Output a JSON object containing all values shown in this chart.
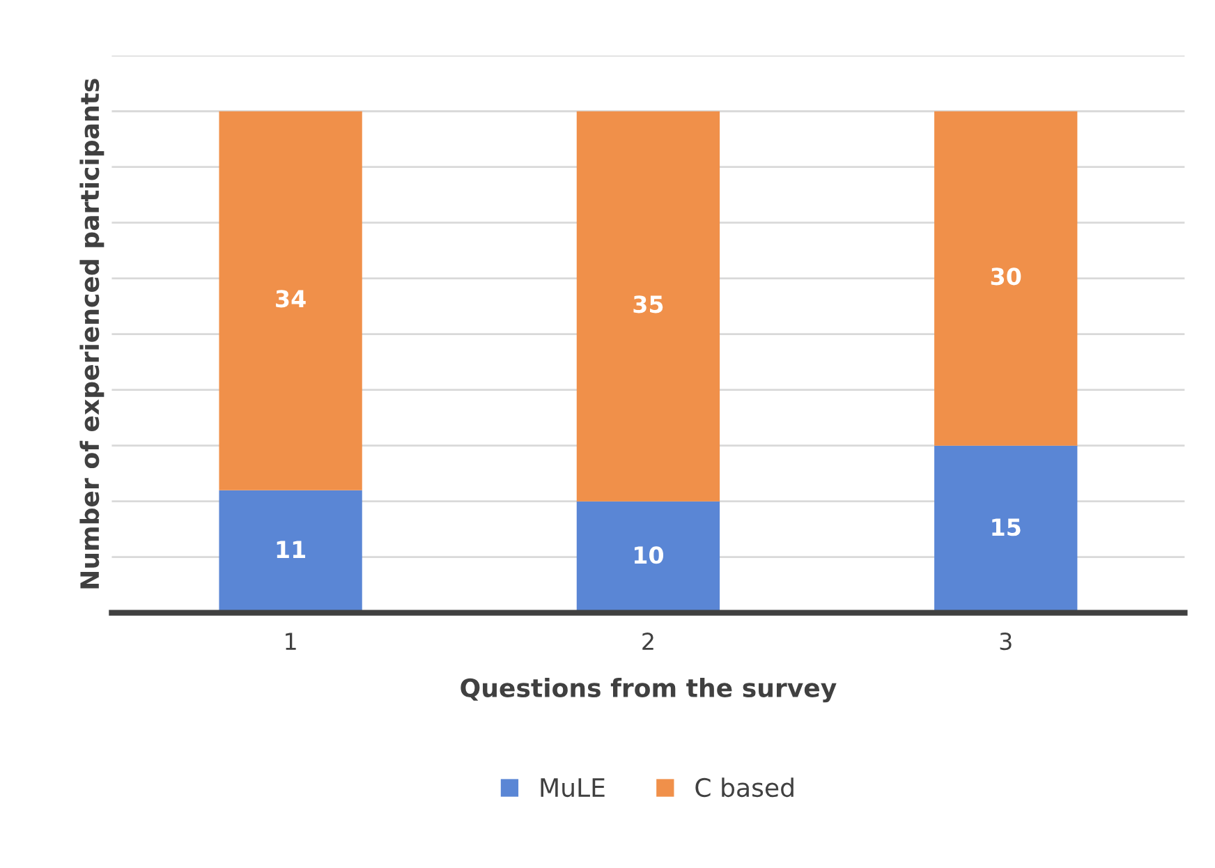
{
  "chart_data": {
    "type": "bar",
    "stacked": true,
    "xlabel": "Questions from the survey",
    "ylabel": "Number of experienced participants",
    "categories": [
      "1",
      "2",
      "3"
    ],
    "series": [
      {
        "name": "MuLE",
        "color": "#5a86d5",
        "values": [
          11,
          10,
          15
        ]
      },
      {
        "name": "C based",
        "color": "#f0904a",
        "values": [
          34,
          35,
          30
        ]
      }
    ],
    "ylim": [
      0,
      50
    ],
    "yticks": [
      {
        "value": 0,
        "label": null
      },
      {
        "value": 5,
        "label": null
      },
      {
        "value": 10,
        "label": null
      },
      {
        "value": 15,
        "label": null
      },
      {
        "value": 20,
        "label": null
      },
      {
        "value": 25,
        "label": null
      },
      {
        "value": 30,
        "label": null
      },
      {
        "value": 35,
        "label": null
      },
      {
        "value": 40,
        "label": null
      },
      {
        "value": 45,
        "label": null
      },
      {
        "value": 50,
        "label": null
      }
    ],
    "tick_labels": "x",
    "grid": "y",
    "legend": "bottom",
    "data_labels": true
  }
}
